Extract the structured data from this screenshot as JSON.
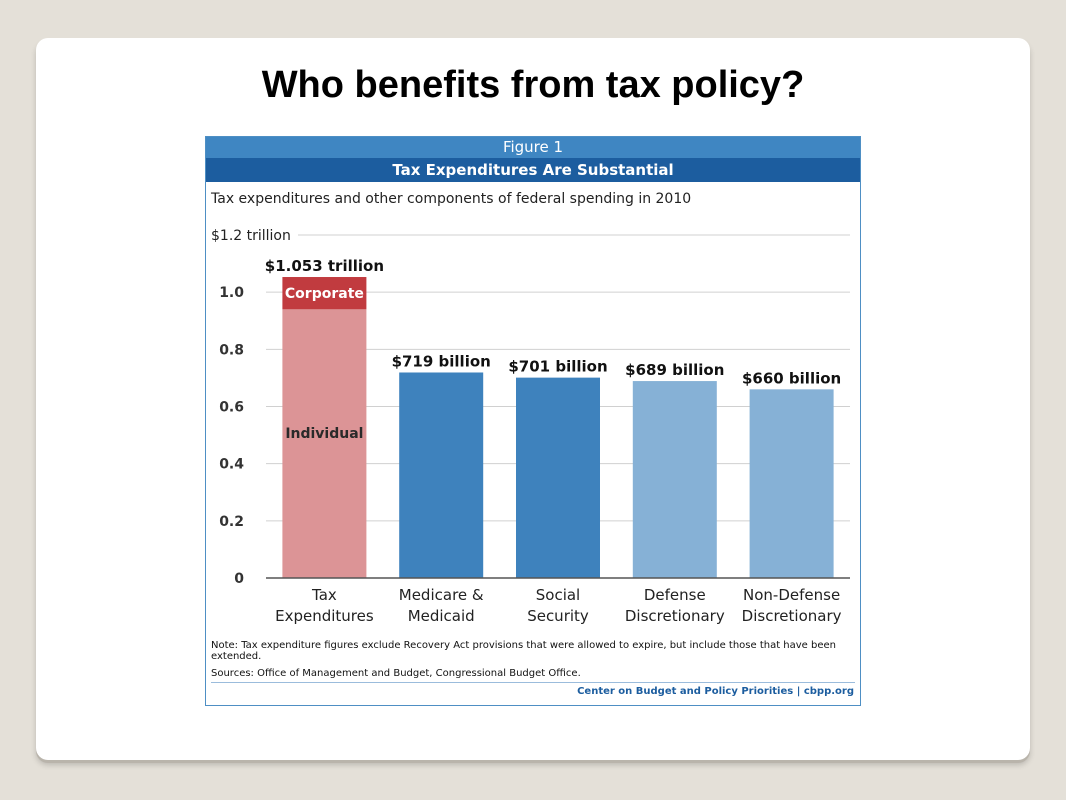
{
  "slide": {
    "title": "Who benefits from tax policy?"
  },
  "figure": {
    "label": "Figure 1",
    "heading": "Tax Expenditures Are Substantial",
    "note": "Note: Tax expenditure figures exclude Recovery Act provisions that were allowed to expire, but include those that have been extended.",
    "sources": "Sources: Office of Management and Budget, Congressional Budget Office.",
    "credit": "Center on Budget and Policy Priorities | cbpp.org"
  },
  "colors": {
    "corporate": "#c13b3f",
    "individual": "#dc9496",
    "dark_blue": "#3e82bd",
    "light_blue": "#86b1d6",
    "grid": "#d0d0d0"
  },
  "chart_data": {
    "type": "bar",
    "title": "Tax expenditures and other components of federal spending in 2010",
    "unit_label": "$1.2 trillion",
    "ylim": [
      0,
      1.2
    ],
    "yticks": [
      0,
      0.2,
      0.4,
      0.6,
      0.8,
      1.0
    ],
    "ytick_labels": [
      "0",
      "0.2",
      "0.4",
      "0.6",
      "0.8",
      "1.0"
    ],
    "grid": true,
    "categories": [
      [
        "Tax",
        "Expenditures"
      ],
      [
        "Medicare &",
        "Medicaid"
      ],
      [
        "Social",
        "Security"
      ],
      [
        "Defense",
        "Discretionary"
      ],
      [
        "Non-Defense",
        "Discretionary"
      ]
    ],
    "values": [
      1.053,
      0.719,
      0.701,
      0.689,
      0.66
    ],
    "value_labels": [
      "$1.053 trillion",
      "$719 billion",
      "$701 billion",
      "$689 billion",
      "$660 billion"
    ],
    "bar_colors": [
      "individual",
      "dark_blue",
      "dark_blue",
      "light_blue",
      "light_blue"
    ],
    "stack": {
      "bar_index": 0,
      "segments": [
        {
          "name": "Individual",
          "value": 0.94
        },
        {
          "name": "Corporate",
          "value": 0.113
        }
      ]
    }
  }
}
